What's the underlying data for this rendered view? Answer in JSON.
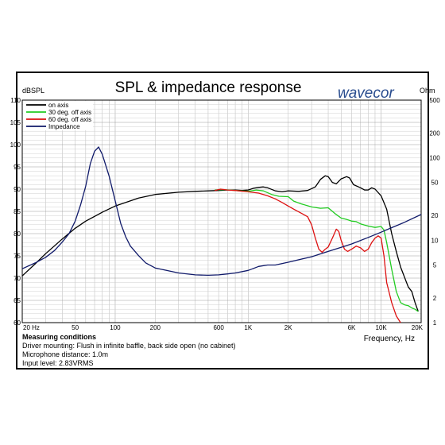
{
  "chart_data": {
    "type": "line",
    "title": "SPL & impedance response",
    "brand": "wavecor",
    "brand_color": "#2a4d8f",
    "xlabel": "Frequency, Hz",
    "ylabel_left": "dBSPL",
    "ylabel_right": "Ohm",
    "x_scale": "log",
    "xlim": [
      20,
      20000
    ],
    "ylim_left": [
      60,
      110
    ],
    "ylim_right": [
      1,
      500
    ],
    "y_right_scale": "log",
    "grid": true,
    "legend_position": "top-left",
    "x_ticks": [
      {
        "value": 20,
        "label": "20 Hz"
      },
      {
        "value": 50,
        "label": "50"
      },
      {
        "value": 100,
        "label": "100"
      },
      {
        "value": 200,
        "label": "200"
      },
      {
        "value": 600,
        "label": "600"
      },
      {
        "value": 1000,
        "label": "1K"
      },
      {
        "value": 2000,
        "label": "2K"
      },
      {
        "value": 6000,
        "label": "6K"
      },
      {
        "value": 10000,
        "label": "10K"
      },
      {
        "value": 20000,
        "label": "20K"
      }
    ],
    "y_left_ticks": [
      60,
      65,
      70,
      75,
      80,
      85,
      90,
      95,
      100,
      105,
      110
    ],
    "y_right_ticks": [
      {
        "value": 1,
        "label": "1"
      },
      {
        "value": 2,
        "label": "2"
      },
      {
        "value": 5,
        "label": "5"
      },
      {
        "value": 10,
        "label": "10"
      },
      {
        "value": 20,
        "label": "20"
      },
      {
        "value": 50,
        "label": "50"
      },
      {
        "value": 100,
        "label": "100"
      },
      {
        "value": 200,
        "label": "200"
      },
      {
        "value": 500,
        "label": "500"
      }
    ],
    "series": [
      {
        "name": "on axis",
        "color": "#000000",
        "axis": "left",
        "points": [
          [
            20,
            70.5
          ],
          [
            25,
            73.2
          ],
          [
            30,
            75.5
          ],
          [
            40,
            78.8
          ],
          [
            50,
            81.2
          ],
          [
            60,
            82.8
          ],
          [
            80,
            84.8
          ],
          [
            100,
            86.2
          ],
          [
            150,
            88
          ],
          [
            200,
            88.8
          ],
          [
            300,
            89.3
          ],
          [
            400,
            89.5
          ],
          [
            500,
            89.6
          ],
          [
            600,
            89.7
          ],
          [
            700,
            89.8
          ],
          [
            800,
            89.8
          ],
          [
            900,
            89.7
          ],
          [
            1000,
            89.8
          ],
          [
            1100,
            90.2
          ],
          [
            1200,
            90.4
          ],
          [
            1300,
            90.5
          ],
          [
            1400,
            90.3
          ],
          [
            1600,
            89.6
          ],
          [
            1800,
            89.4
          ],
          [
            2000,
            89.6
          ],
          [
            2400,
            89.5
          ],
          [
            2800,
            89.7
          ],
          [
            3200,
            90.5
          ],
          [
            3500,
            92.2
          ],
          [
            3800,
            93
          ],
          [
            4000,
            92.8
          ],
          [
            4300,
            91.5
          ],
          [
            4600,
            91.2
          ],
          [
            5000,
            92.3
          ],
          [
            5500,
            92.8
          ],
          [
            5800,
            92.5
          ],
          [
            6200,
            91
          ],
          [
            7000,
            90.3
          ],
          [
            7500,
            89.8
          ],
          [
            8000,
            89.8
          ],
          [
            8500,
            90.3
          ],
          [
            9000,
            90
          ],
          [
            10000,
            88.5
          ],
          [
            11000,
            85.5
          ],
          [
            12000,
            80
          ],
          [
            13000,
            76
          ],
          [
            14000,
            72.5
          ],
          [
            16000,
            68
          ],
          [
            17000,
            67
          ],
          [
            18000,
            64.5
          ],
          [
            19000,
            62.5
          ]
        ]
      },
      {
        "name": "30 deg. off axis",
        "color": "#22cc22",
        "axis": "left",
        "points": [
          [
            560,
            89.8
          ],
          [
            650,
            89.9
          ],
          [
            800,
            89.7
          ],
          [
            1000,
            89.5
          ],
          [
            1150,
            89.8
          ],
          [
            1300,
            89.6
          ],
          [
            1500,
            88.8
          ],
          [
            1700,
            88.4
          ],
          [
            2000,
            88.3
          ],
          [
            2200,
            87.3
          ],
          [
            2500,
            86.7
          ],
          [
            3000,
            86
          ],
          [
            3500,
            85.7
          ],
          [
            4000,
            85.8
          ],
          [
            4500,
            84.5
          ],
          [
            5000,
            83.5
          ],
          [
            5500,
            83.2
          ],
          [
            6000,
            82.8
          ],
          [
            6500,
            82.7
          ],
          [
            7000,
            82.2
          ],
          [
            8000,
            81.7
          ],
          [
            9000,
            81.4
          ],
          [
            10000,
            81.6
          ],
          [
            10500,
            80.8
          ],
          [
            11000,
            78
          ],
          [
            12000,
            72
          ],
          [
            13000,
            67
          ],
          [
            14000,
            64.5
          ],
          [
            15000,
            64
          ],
          [
            16000,
            63.8
          ],
          [
            17000,
            63.3
          ],
          [
            18000,
            63
          ],
          [
            19000,
            62.5
          ]
        ]
      },
      {
        "name": "60 deg. off axis",
        "color": "#dd1111",
        "axis": "left",
        "points": [
          [
            560,
            89.7
          ],
          [
            620,
            90
          ],
          [
            700,
            89.8
          ],
          [
            800,
            89.7
          ],
          [
            1000,
            89.4
          ],
          [
            1200,
            89.1
          ],
          [
            1400,
            88.5
          ],
          [
            1600,
            87.8
          ],
          [
            1800,
            87
          ],
          [
            2000,
            86.2
          ],
          [
            2200,
            85.5
          ],
          [
            2500,
            84.6
          ],
          [
            2800,
            83.8
          ],
          [
            3000,
            82
          ],
          [
            3200,
            79
          ],
          [
            3400,
            76.5
          ],
          [
            3600,
            75.8
          ],
          [
            3800,
            76.5
          ],
          [
            4000,
            77
          ],
          [
            4300,
            79
          ],
          [
            4600,
            81
          ],
          [
            4800,
            80.5
          ],
          [
            5000,
            78.5
          ],
          [
            5300,
            76.5
          ],
          [
            5600,
            76
          ],
          [
            6000,
            76.5
          ],
          [
            6500,
            77.2
          ],
          [
            7000,
            76.8
          ],
          [
            7500,
            76
          ],
          [
            8000,
            76.5
          ],
          [
            8500,
            78
          ],
          [
            9000,
            79
          ],
          [
            9500,
            79.5
          ],
          [
            10000,
            79
          ],
          [
            10500,
            75
          ],
          [
            11000,
            69
          ],
          [
            12000,
            64.5
          ],
          [
            13000,
            61.5
          ],
          [
            14000,
            60
          ]
        ]
      },
      {
        "name": "Impedance",
        "color": "#101a6a",
        "axis": "right",
        "points": [
          [
            20,
            4.5
          ],
          [
            25,
            5.3
          ],
          [
            30,
            6.2
          ],
          [
            35,
            7.5
          ],
          [
            40,
            9.5
          ],
          [
            45,
            12
          ],
          [
            50,
            17
          ],
          [
            55,
            27
          ],
          [
            60,
            45
          ],
          [
            65,
            85
          ],
          [
            70,
            120
          ],
          [
            75,
            135
          ],
          [
            80,
            110
          ],
          [
            90,
            60
          ],
          [
            100,
            30
          ],
          [
            110,
            16
          ],
          [
            120,
            11
          ],
          [
            130,
            8.5
          ],
          [
            150,
            6.5
          ],
          [
            170,
            5.3
          ],
          [
            200,
            4.6
          ],
          [
            300,
            4
          ],
          [
            400,
            3.8
          ],
          [
            500,
            3.75
          ],
          [
            600,
            3.8
          ],
          [
            700,
            3.9
          ],
          [
            800,
            4
          ],
          [
            1000,
            4.3
          ],
          [
            1200,
            4.8
          ],
          [
            1400,
            5
          ],
          [
            1600,
            5
          ],
          [
            2000,
            5.4
          ],
          [
            3000,
            6.3
          ],
          [
            4000,
            7.3
          ],
          [
            5000,
            8.2
          ],
          [
            6000,
            9
          ],
          [
            8000,
            10.8
          ],
          [
            10000,
            12.5
          ],
          [
            12000,
            14.2
          ],
          [
            15000,
            16.5
          ],
          [
            20000,
            20.5
          ]
        ]
      }
    ]
  },
  "conditions": {
    "title": "Measuring conditions",
    "lines": [
      "Driver mounting: Flush in infinite baffle, back side open (no cabinet)",
      "Microphone distance: 1.0m",
      "Input level: 2.83VRMS"
    ]
  }
}
